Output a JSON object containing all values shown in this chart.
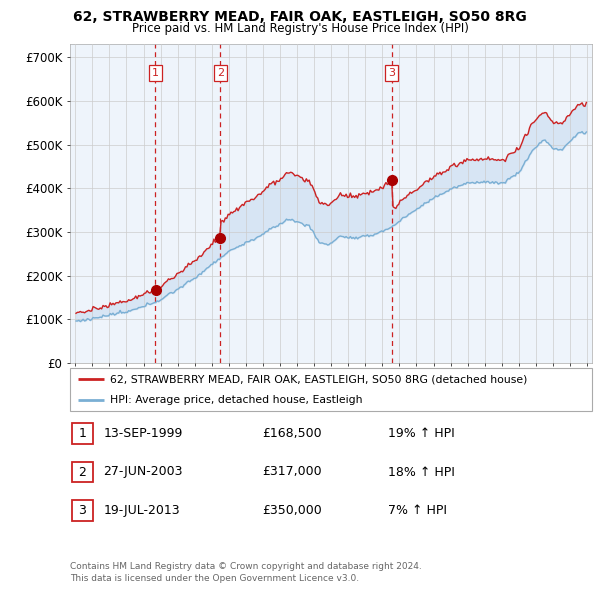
{
  "title": "62, STRAWBERRY MEAD, FAIR OAK, EASTLEIGH, SO50 8RG",
  "subtitle": "Price paid vs. HM Land Registry's House Price Index (HPI)",
  "ylabel_ticks": [
    "£0",
    "£100K",
    "£200K",
    "£300K",
    "£400K",
    "£500K",
    "£600K",
    "£700K"
  ],
  "ytick_values": [
    0,
    100000,
    200000,
    300000,
    400000,
    500000,
    600000,
    700000
  ],
  "ylim": [
    0,
    730000
  ],
  "xlim_start": 1994.7,
  "xlim_end": 2025.3,
  "sale_dates": [
    1999.7,
    2003.5,
    2013.55
  ],
  "sale_prices": [
    168500,
    317000,
    350000
  ],
  "transaction_labels": [
    "1",
    "2",
    "3"
  ],
  "sale_line_color": "#cc2222",
  "hpi_line_color": "#7aafd4",
  "fill_color": "#ddeeff",
  "vline_color": "#cc2222",
  "grid_color": "#cccccc",
  "bg_color": "#eef4fb",
  "legend_sale_label": "62, STRAWBERRY MEAD, FAIR OAK, EASTLEIGH, SO50 8RG (detached house)",
  "legend_hpi_label": "HPI: Average price, detached house, Eastleigh",
  "table_rows": [
    {
      "num": "1",
      "date": "13-SEP-1999",
      "price": "£168,500",
      "pct": "19% ↑ HPI"
    },
    {
      "num": "2",
      "date": "27-JUN-2003",
      "price": "£317,000",
      "pct": "18% ↑ HPI"
    },
    {
      "num": "3",
      "date": "19-JUL-2013",
      "price": "£350,000",
      "pct": "7% ↑ HPI"
    }
  ],
  "footer": "Contains HM Land Registry data © Crown copyright and database right 2024.\nThis data is licensed under the Open Government Licence v3.0."
}
